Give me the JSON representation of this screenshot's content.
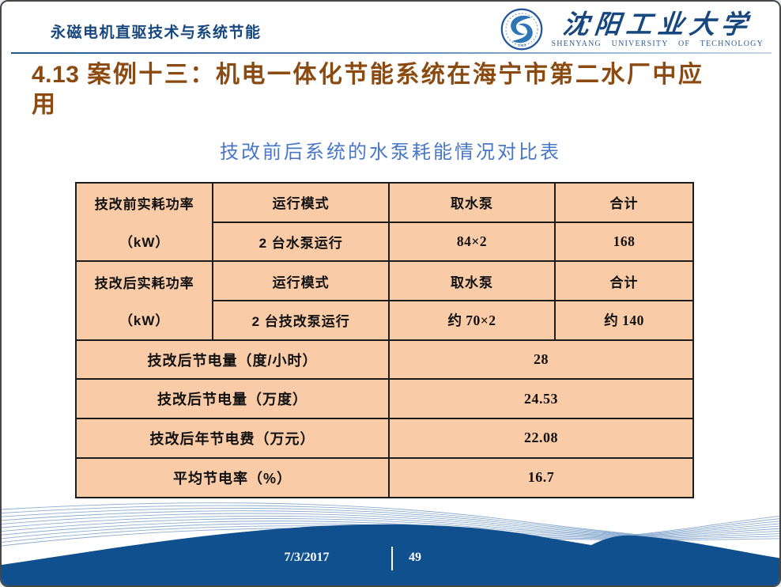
{
  "header": {
    "title": "永磁电机直驱技术与系统节能"
  },
  "logo": {
    "university_cn": "沈阳工业大学",
    "university_en": "SHENYANG  UNIVERSITY  OF  TECHNOLOGY",
    "founded": "1949"
  },
  "heading": {
    "number": "4.13",
    "text": "案例十三：机电一体化节能系统在海宁市第二水厂中应用"
  },
  "table_title": "技改前后系统的水泵耗能情况对比表",
  "table": {
    "sections": [
      {
        "label_line1": "技改前实耗功率",
        "label_line2": "（kW）",
        "header_row": [
          "运行模式",
          "取水泵",
          "合计"
        ],
        "data_row": [
          "2 台水泵运行",
          "84×2",
          "168"
        ]
      },
      {
        "label_line1": "技改后实耗功率",
        "label_line2": "（kW）",
        "header_row": [
          "运行模式",
          "取水泵",
          "合计"
        ],
        "data_row": [
          "2 台技改泵运行",
          "约 70×2",
          "约 140"
        ]
      }
    ],
    "summary_rows": [
      {
        "label": "技改后节电量（度/小时）",
        "value": "28"
      },
      {
        "label": "技改后节电量（万度）",
        "value": "24.53"
      },
      {
        "label": "技改后年节电费（万元）",
        "value": "22.08"
      },
      {
        "label": "平均节电率（%）",
        "value": "16.7"
      }
    ]
  },
  "footer": {
    "date": "7/3/2017",
    "page": "49"
  },
  "colors": {
    "header_blue": "#17477F",
    "heading_brown": "#8B4A10",
    "table_title_blue": "#4877C8",
    "cell_background": "#F9CBA7",
    "cell_border": "#1C1C1C",
    "wave_solid_blue": "#10508F",
    "wave_line_blue": "#7FA3CC",
    "footer_text": "#FFFFFF"
  }
}
